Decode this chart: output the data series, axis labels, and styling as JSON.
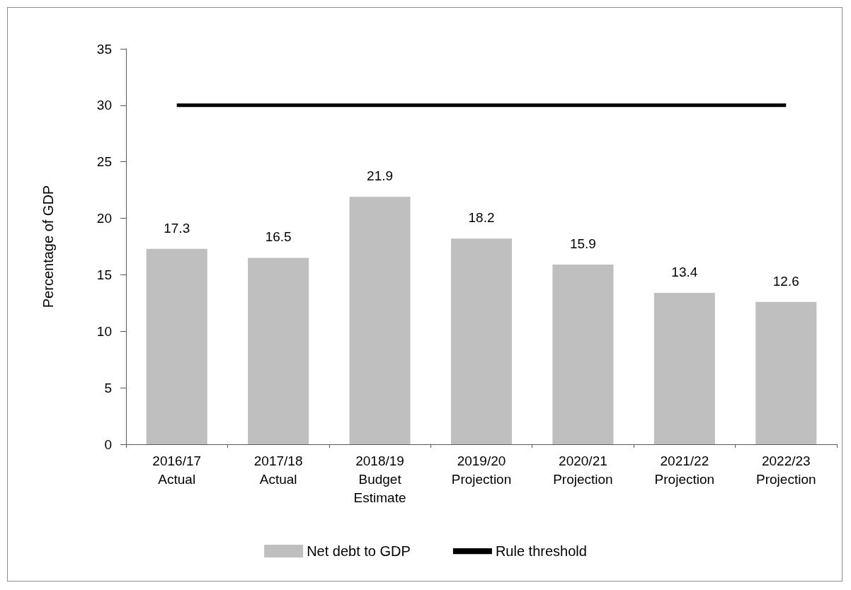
{
  "chart_data": {
    "type": "bar",
    "ylabel": "Percentage of GDP",
    "categories": [
      "2016/17\nActual",
      "2017/18\nActual",
      "2018/19\nBudget\nEstimate",
      "2019/20\nProjection",
      "2020/21\nProjection",
      "2021/22\nProjection",
      "2022/23\nProjection"
    ],
    "series": [
      {
        "name": "Net debt to GDP",
        "color": "#bfbfbf",
        "values": [
          17.3,
          16.5,
          21.9,
          18.2,
          15.9,
          13.4,
          12.6
        ],
        "value_labels": [
          "17.3",
          "16.5",
          "21.9",
          "18.2",
          "15.9",
          "13.4",
          "12.6"
        ]
      },
      {
        "type": "line",
        "name": "Rule threshold",
        "color": "#000000",
        "values": [
          30,
          30,
          30,
          30,
          30,
          30,
          30
        ],
        "marker": "none",
        "line_style": "solid"
      }
    ],
    "ylim": [
      0,
      35
    ],
    "yticks": [
      0,
      5,
      10,
      15,
      20,
      25,
      30,
      35
    ],
    "grid": false,
    "legend": "bottom"
  }
}
